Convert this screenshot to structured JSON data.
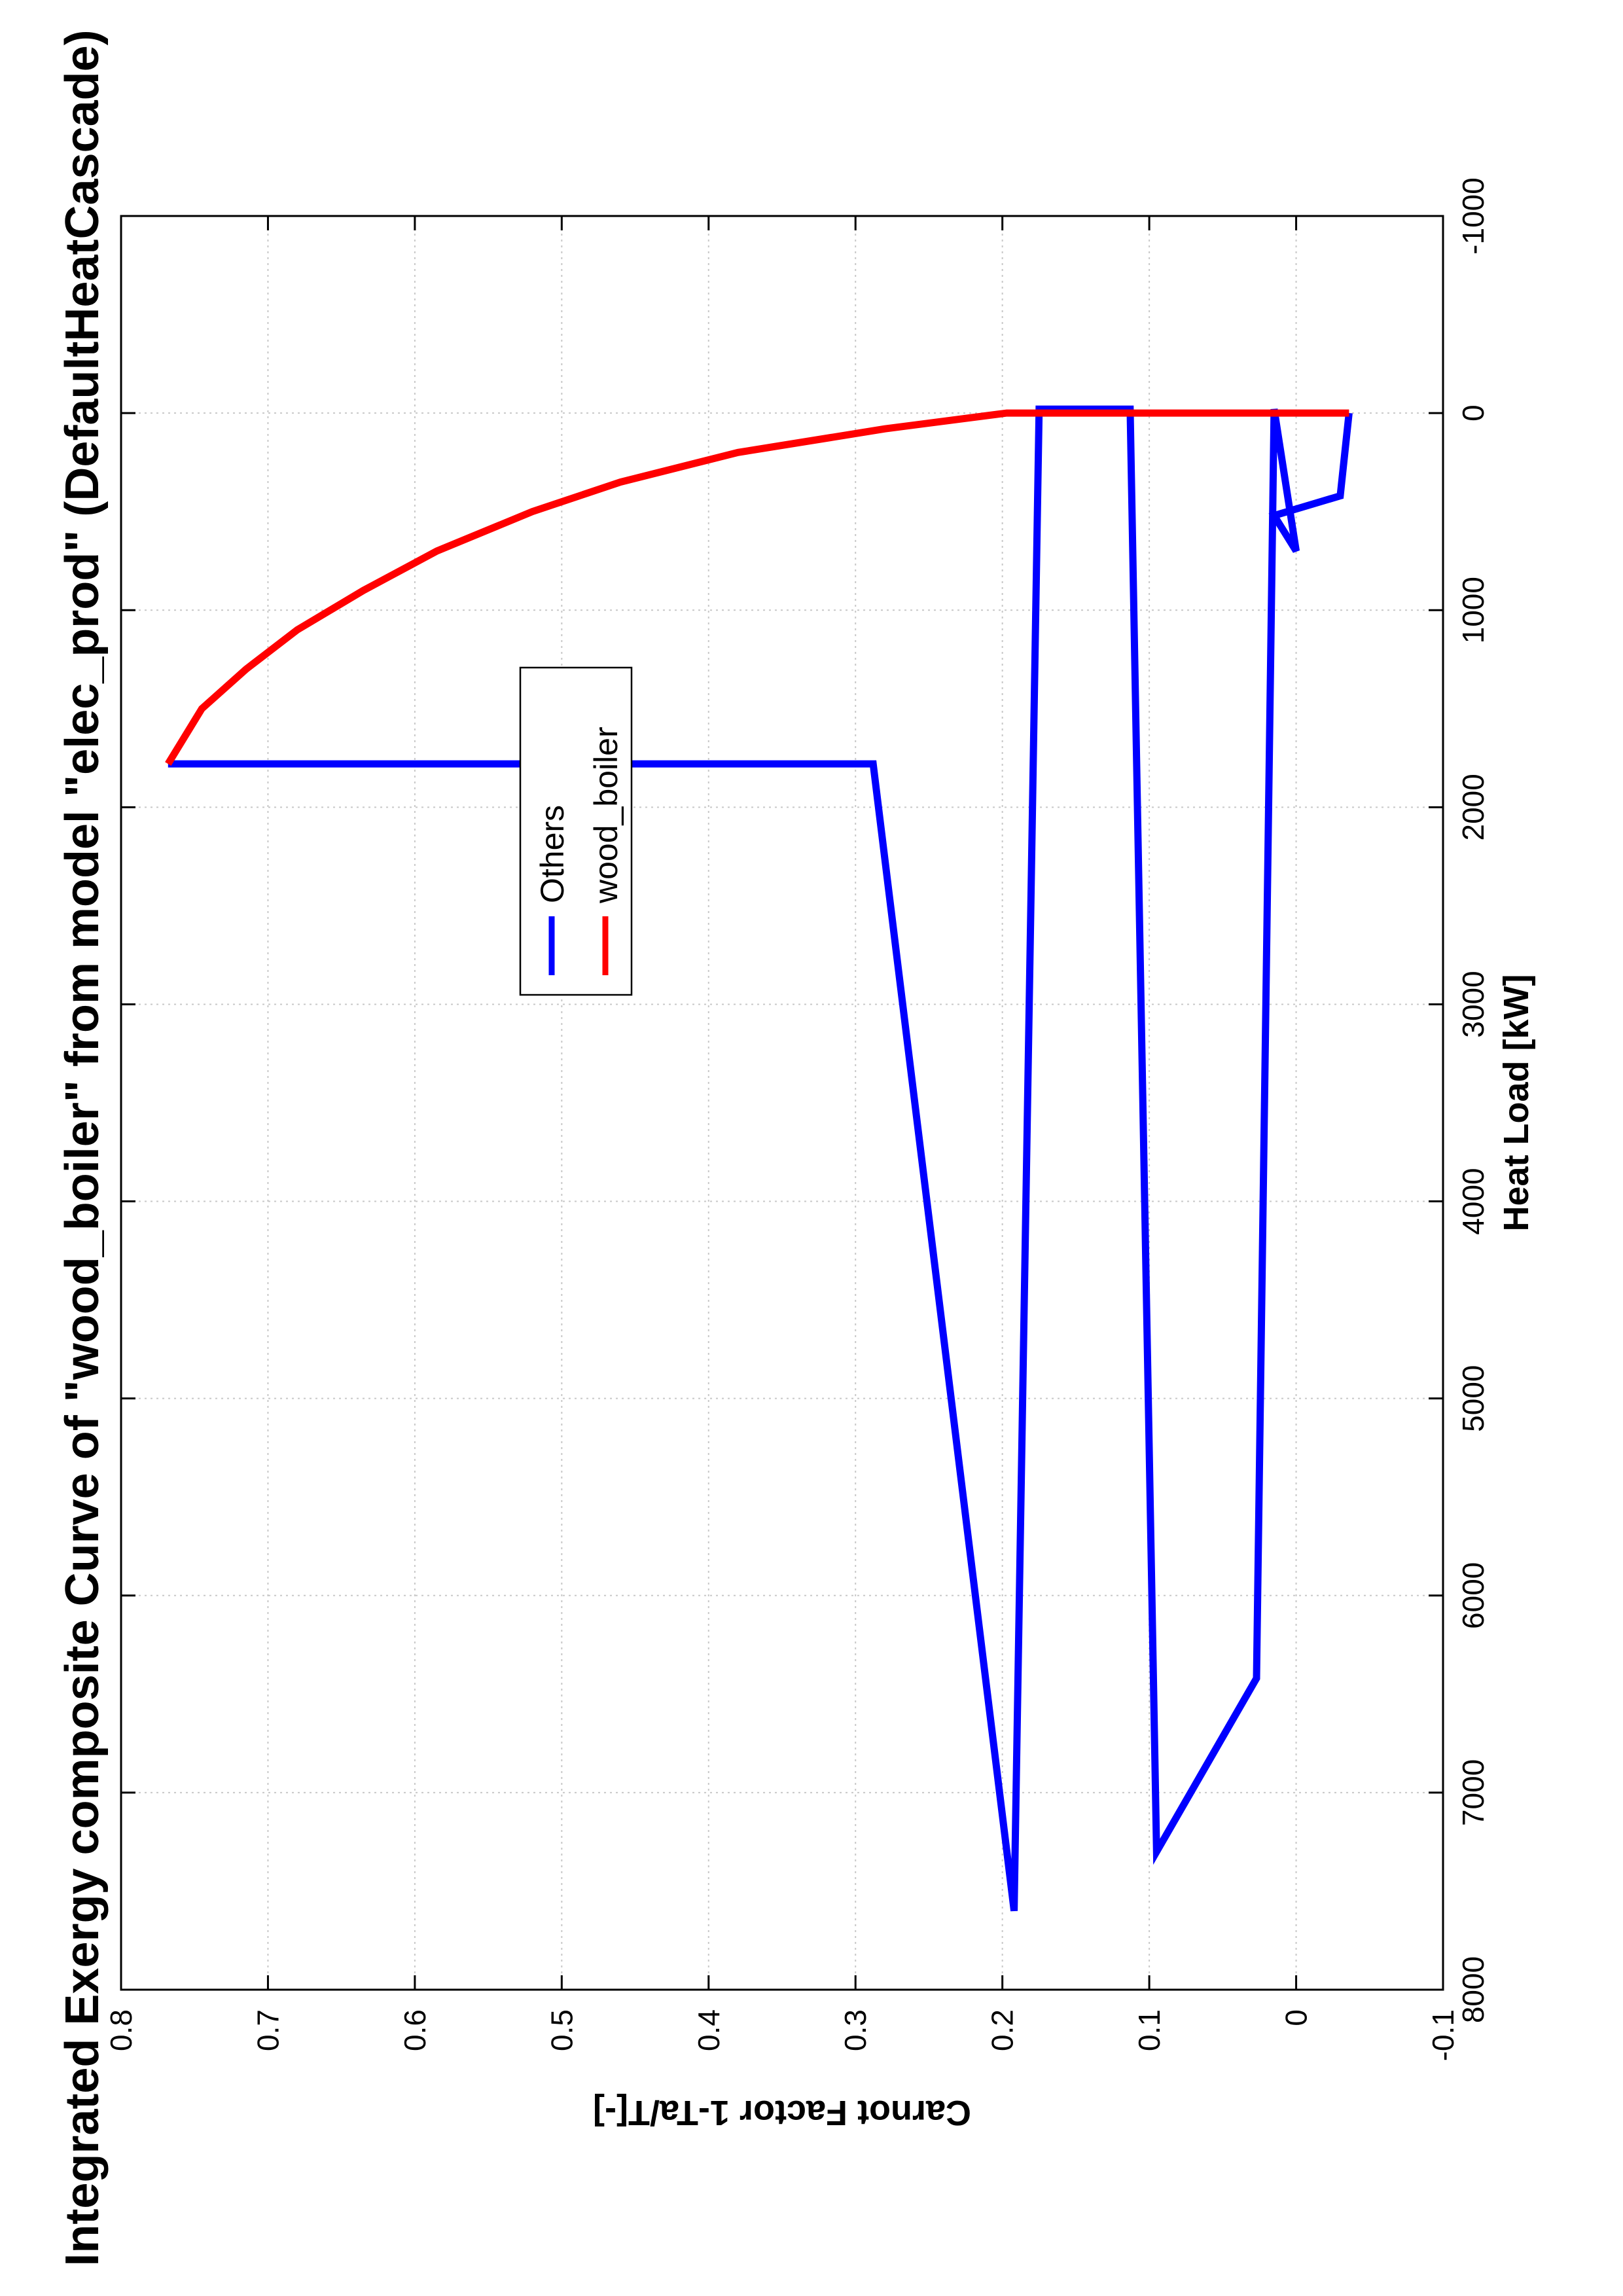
{
  "chart_data": {
    "type": "line",
    "title": "Integrated Exergy composite Curve of \"wood_boiler\" from model \"elec_prod\" (DefaultHeatCascade)",
    "xlabel": "Heat Load [kW]",
    "ylabel": "Carnot Factor 1-Ta/T[-]",
    "xlim": [
      -1000,
      8000
    ],
    "ylim": [
      -0.1,
      0.8
    ],
    "xticks": [
      "-1000",
      "0",
      "1000",
      "2000",
      "3000",
      "4000",
      "5000",
      "6000",
      "7000",
      "8000"
    ],
    "yticks": [
      "-0.1",
      "0",
      "0.1",
      "0.2",
      "0.3",
      "0.4",
      "0.5",
      "0.6",
      "0.7",
      "0.8"
    ],
    "grid": true,
    "legend_position": "top-center",
    "orientation": "rotated 90 degrees counter-clockwise",
    "series": [
      {
        "name": "Others",
        "color": "#0000ff",
        "points": [
          [
            1780,
            0.768
          ],
          [
            1780,
            0.288
          ],
          [
            7600,
            0.192
          ],
          [
            -20,
            0.175
          ],
          [
            -20,
            0.113
          ],
          [
            7300,
            0.095
          ],
          [
            6420,
            0.027
          ],
          [
            -20,
            0.015
          ],
          [
            700,
            0.0
          ],
          [
            520,
            0.015
          ],
          [
            420,
            -0.03
          ],
          [
            0,
            -0.036
          ]
        ]
      },
      {
        "name": "wood_boiler",
        "color": "#ff0000",
        "points": [
          [
            0,
            -0.036
          ],
          [
            0,
            0.197
          ],
          [
            80,
            0.28
          ],
          [
            200,
            0.38
          ],
          [
            350,
            0.46
          ],
          [
            500,
            0.52
          ],
          [
            700,
            0.585
          ],
          [
            900,
            0.635
          ],
          [
            1100,
            0.68
          ],
          [
            1300,
            0.715
          ],
          [
            1500,
            0.745
          ],
          [
            1780,
            0.768
          ]
        ]
      }
    ]
  }
}
